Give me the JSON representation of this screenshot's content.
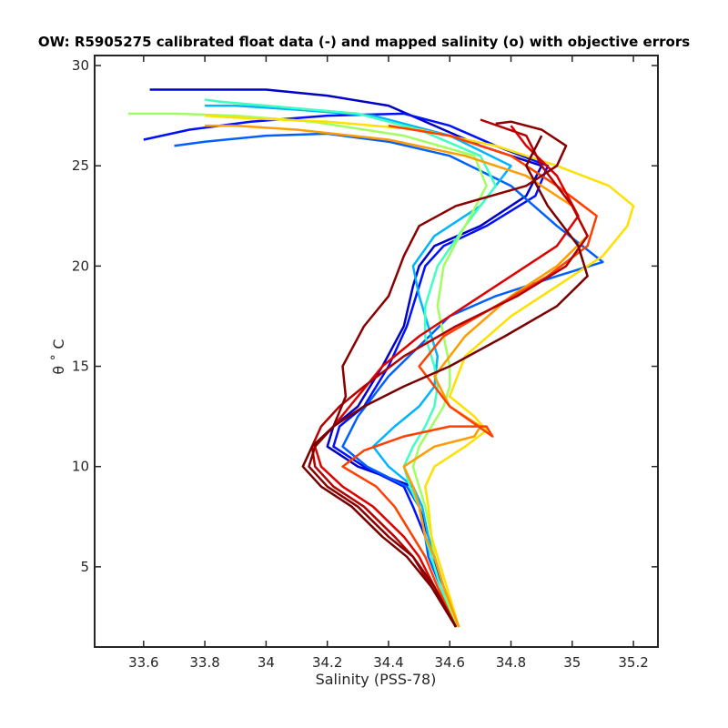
{
  "chart_data": {
    "type": "line",
    "title": "OW: R5905275 calibrated float data (-) and mapped salinity (o) with objective errors",
    "xlabel": "Salinity (PSS-78)",
    "ylabel": "θ ˚ C",
    "xlim": [
      33.44,
      35.28
    ],
    "ylim": [
      1.0,
      30.5
    ],
    "xticks": [
      "33.6",
      "33.8",
      "34",
      "34.2",
      "34.4",
      "34.6",
      "34.8",
      "35",
      "35.2"
    ],
    "yticks": [
      "5",
      "10",
      "15",
      "20",
      "25",
      "30"
    ],
    "grid": false,
    "legend": "none",
    "colormap": "jet (early profiles blue → late profiles dark red)",
    "series": [
      {
        "color": "#0000c8",
        "x": [
          34.62,
          34.58,
          34.55,
          34.53,
          34.5,
          34.48,
          34.3,
          34.2,
          34.22,
          34.3,
          34.38,
          34.45,
          34.48,
          34.5,
          34.55,
          34.7,
          34.85,
          34.9,
          34.7,
          34.55,
          34.4,
          34.2,
          34.0,
          33.8,
          33.62
        ],
        "y": [
          2,
          4,
          5.5,
          6.5,
          8,
          9,
          10,
          11,
          12,
          13,
          15,
          17,
          19,
          20,
          21,
          22,
          23.5,
          25,
          26,
          27,
          28,
          28.5,
          28.8,
          28.8,
          28.8
        ]
      },
      {
        "color": "#0010ff",
        "x": [
          34.63,
          34.58,
          34.54,
          34.52,
          34.48,
          34.45,
          34.32,
          34.22,
          34.24,
          34.32,
          34.4,
          34.46,
          34.5,
          34.52,
          34.58,
          34.72,
          34.88,
          34.92,
          34.75,
          34.6,
          34.45,
          34.2,
          33.95,
          33.75,
          33.6
        ],
        "y": [
          2,
          4,
          5.5,
          6.5,
          8,
          9,
          10,
          11,
          12,
          13,
          15,
          17,
          19,
          20,
          21,
          22,
          23.5,
          25,
          26,
          27,
          27.6,
          27.5,
          27.2,
          26.8,
          26.3
        ]
      },
      {
        "color": "#0060ff",
        "x": [
          34.62,
          34.57,
          34.53,
          34.52,
          34.5,
          34.46,
          34.33,
          34.25,
          34.3,
          34.4,
          34.5,
          34.6,
          34.75,
          34.95,
          35.1,
          34.95,
          34.8,
          34.6,
          34.4,
          34.2,
          34.0,
          33.8,
          33.7
        ],
        "y": [
          2,
          4,
          5.5,
          6.5,
          8,
          9,
          10,
          11,
          12.5,
          14.5,
          16,
          17.5,
          18.5,
          19.5,
          20.2,
          22,
          24,
          25.5,
          26.2,
          26.6,
          26.5,
          26.2,
          26.0
        ]
      },
      {
        "color": "#00b4ff",
        "x": [
          34.63,
          34.58,
          34.55,
          34.53,
          34.51,
          34.48,
          34.4,
          34.35,
          34.42,
          34.5,
          34.55,
          34.56,
          34.53,
          34.5,
          34.48,
          34.55,
          34.7,
          34.8,
          34.6,
          34.35,
          34.1,
          33.9,
          33.8
        ],
        "y": [
          2,
          4,
          5.5,
          6.5,
          8,
          9,
          10,
          11,
          12,
          13,
          14,
          15.5,
          17,
          18.5,
          20,
          21.5,
          23,
          25,
          26.5,
          27.5,
          27.8,
          28,
          28
        ]
      },
      {
        "color": "#40ffc0",
        "x": [
          34.62,
          34.57,
          34.54,
          34.52,
          34.5,
          34.47,
          34.45,
          34.48,
          34.52,
          34.55,
          34.56,
          34.55,
          34.52,
          34.52,
          34.56,
          34.65,
          34.75,
          34.7,
          34.5,
          34.3,
          34.0,
          33.85,
          33.8
        ],
        "y": [
          2,
          4,
          5.5,
          6.5,
          8,
          9,
          10,
          11,
          12,
          13,
          14,
          15,
          16.5,
          18,
          20,
          22,
          24,
          25.5,
          26.8,
          27.6,
          28,
          28.2,
          28.3
        ]
      },
      {
        "color": "#a0ff60",
        "x": [
          34.62,
          34.58,
          34.55,
          34.54,
          34.52,
          34.5,
          34.48,
          34.5,
          34.54,
          34.58,
          34.6,
          34.6,
          34.58,
          34.56,
          34.58,
          34.65,
          34.72,
          34.68,
          34.45,
          34.15,
          33.9,
          33.7,
          33.55
        ],
        "y": [
          2,
          4,
          5.5,
          6.5,
          8,
          9,
          10,
          11,
          12,
          13,
          14,
          15,
          16.5,
          18,
          20,
          22,
          24,
          25.5,
          26.5,
          27.2,
          27.5,
          27.6,
          27.6
        ]
      },
      {
        "color": "#ffe000",
        "x": [
          34.63,
          34.59,
          34.56,
          34.54,
          34.53,
          34.52,
          34.55,
          34.65,
          34.72,
          34.68,
          34.6,
          34.65,
          34.8,
          34.95,
          35.1,
          35.18,
          35.2,
          35.12,
          34.95,
          34.75,
          34.5,
          34.2,
          33.9,
          33.8
        ],
        "y": [
          2,
          4,
          5.5,
          6.5,
          8,
          9,
          10,
          11,
          11.8,
          12.5,
          13.5,
          15.5,
          17.5,
          19,
          20.5,
          22,
          23,
          24,
          25,
          26,
          26.8,
          27.2,
          27.4,
          27.5
        ]
      },
      {
        "color": "#ff9c00",
        "x": [
          34.63,
          34.58,
          34.55,
          34.52,
          34.5,
          34.48,
          34.45,
          34.55,
          34.68,
          34.7,
          34.6,
          34.55,
          34.65,
          34.8,
          34.95,
          35.05,
          35.0,
          34.85,
          34.65,
          34.4,
          34.1,
          33.9,
          33.8
        ],
        "y": [
          2,
          4,
          5.5,
          6.5,
          8,
          9,
          10,
          11,
          11.5,
          12,
          13,
          14.5,
          16.5,
          18.5,
          20,
          21.5,
          23,
          24.5,
          25.5,
          26.3,
          26.8,
          27.0,
          27.0
        ]
      },
      {
        "color": "#ff4000",
        "x": [
          34.62,
          34.56,
          34.52,
          34.48,
          34.42,
          34.36,
          34.25,
          34.32,
          34.45,
          34.6,
          34.72,
          34.74,
          34.6,
          34.5,
          34.58,
          34.75,
          34.92,
          35.05,
          35.08,
          34.95,
          34.8,
          34.6,
          34.4
        ],
        "y": [
          2,
          4,
          5.5,
          6.5,
          8,
          9,
          10,
          10.8,
          11.5,
          12,
          12,
          11.5,
          13,
          15,
          16.5,
          18,
          19.5,
          21,
          22.5,
          24,
          25.5,
          26.5,
          27
        ]
      },
      {
        "color": "#e00000",
        "x": [
          34.62,
          34.55,
          34.5,
          34.45,
          34.35,
          34.25,
          34.18,
          34.16,
          34.22,
          34.3,
          34.38,
          34.5,
          34.65,
          34.8,
          34.95,
          35.02,
          34.95,
          34.85,
          34.8
        ],
        "y": [
          2,
          4,
          5.5,
          6.5,
          8,
          9,
          10,
          11,
          12,
          13.5,
          15,
          16.5,
          18,
          19.5,
          21,
          22.5,
          24.5,
          26,
          27
        ]
      },
      {
        "color": "#b40000",
        "x": [
          34.62,
          34.54,
          34.48,
          34.42,
          34.32,
          34.22,
          34.16,
          34.15,
          34.18,
          34.24,
          34.32,
          34.45,
          34.62,
          34.82,
          34.98,
          35.05,
          35.0,
          34.9,
          34.85,
          34.7
        ],
        "y": [
          2,
          4,
          5.5,
          6.5,
          8,
          9,
          10,
          11,
          12,
          13,
          14,
          15.5,
          17,
          18.5,
          20,
          21.5,
          23,
          25,
          26.5,
          27.3
        ]
      },
      {
        "color": "#8a0000",
        "x": [
          34.62,
          34.55,
          34.48,
          34.4,
          34.3,
          34.2,
          34.14,
          34.16,
          34.22,
          34.26,
          34.25,
          34.32,
          34.4,
          34.45,
          34.5,
          34.62,
          34.85,
          34.95,
          34.98,
          34.9,
          34.8,
          34.75
        ],
        "y": [
          2,
          4,
          5.5,
          6.5,
          8,
          9,
          10,
          11,
          12,
          13.5,
          15,
          17,
          18.5,
          20.5,
          22,
          23,
          24,
          25,
          26,
          26.8,
          27.2,
          27.1
        ]
      },
      {
        "color": "#7a0000",
        "x": [
          34.62,
          34.54,
          34.46,
          34.38,
          34.28,
          34.18,
          34.12,
          34.15,
          34.22,
          34.32,
          34.45,
          34.6,
          34.78,
          34.95,
          35.05,
          35.02,
          34.92,
          34.85,
          34.9
        ],
        "y": [
          2,
          4,
          5.5,
          6.5,
          8,
          9,
          10,
          11,
          12,
          13,
          14,
          15,
          16.5,
          18,
          19.5,
          21,
          23,
          25,
          26.5
        ]
      }
    ]
  }
}
